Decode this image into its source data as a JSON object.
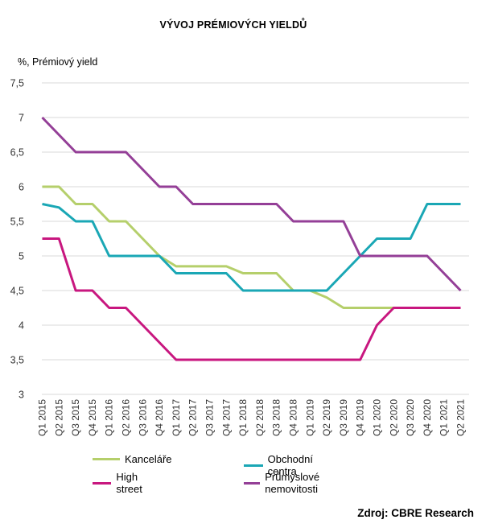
{
  "chart_data": {
    "type": "line",
    "title": "VÝVOJ PRÉMIOVÝCH YIELDŮ",
    "ylabel": "%, Prémiový yield",
    "xlabel": "",
    "ylim": [
      3,
      7.5
    ],
    "yticks": [
      3,
      3.5,
      4,
      4.5,
      5,
      5.5,
      6,
      6.5,
      7,
      7.5
    ],
    "ytick_labels": [
      "3",
      "3,5",
      "4",
      "4,5",
      "5",
      "5,5",
      "6",
      "6,5",
      "7",
      "7,5"
    ],
    "grid": "horizontal",
    "legend_position": "bottom",
    "categories": [
      "Q1 2015",
      "Q2 2015",
      "Q3 2015",
      "Q4 2015",
      "Q1 2016",
      "Q2 2016",
      "Q3 2016",
      "Q4 2016",
      "Q1 2017",
      "Q2 2017",
      "Q3 2017",
      "Q4 2017",
      "Q1 2018",
      "Q2 2018",
      "Q3 2018",
      "Q4 2018",
      "Q1 2019",
      "Q2 2019",
      "Q3 2019",
      "Q4 2019",
      "Q1 2020",
      "Q2 2020",
      "Q3 2020",
      "Q4 2020",
      "Q1 2021",
      "Q2 2021"
    ],
    "series": [
      {
        "name": "Kanceláře",
        "color": "#b5cf6b",
        "values": [
          6,
          6,
          5.75,
          5.75,
          5.5,
          5.5,
          5.25,
          5,
          4.85,
          4.85,
          4.85,
          4.85,
          4.75,
          4.75,
          4.75,
          4.5,
          4.5,
          4.4,
          4.25,
          4.25,
          4.25,
          4.25,
          4.25,
          4.25,
          4.25,
          4.25
        ]
      },
      {
        "name": "Obchodní centra",
        "color": "#1aa7b5",
        "values": [
          5.75,
          5.7,
          5.5,
          5.5,
          5,
          5,
          5,
          5,
          4.75,
          4.75,
          4.75,
          4.75,
          4.5,
          4.5,
          4.5,
          4.5,
          4.5,
          4.5,
          4.75,
          5,
          5.25,
          5.25,
          5.25,
          5.75,
          5.75,
          5.75
        ]
      },
      {
        "name": "High street",
        "color": "#c8177f",
        "values": [
          5.25,
          5.25,
          4.5,
          4.5,
          4.25,
          4.25,
          4,
          3.75,
          3.5,
          3.5,
          3.5,
          3.5,
          3.5,
          3.5,
          3.5,
          3.5,
          3.5,
          3.5,
          3.5,
          3.5,
          4,
          4.25,
          4.25,
          4.25,
          4.25,
          4.25
        ]
      },
      {
        "name": "Průmyslové nemovitosti",
        "color": "#943f97",
        "values": [
          7,
          6.75,
          6.5,
          6.5,
          6.5,
          6.5,
          6.25,
          6,
          6,
          5.75,
          5.75,
          5.75,
          5.75,
          5.75,
          5.75,
          5.5,
          5.5,
          5.5,
          5.5,
          5,
          5,
          5,
          5,
          5,
          4.75,
          4.5
        ]
      }
    ],
    "source": "Zdroj: CBRE Research"
  }
}
